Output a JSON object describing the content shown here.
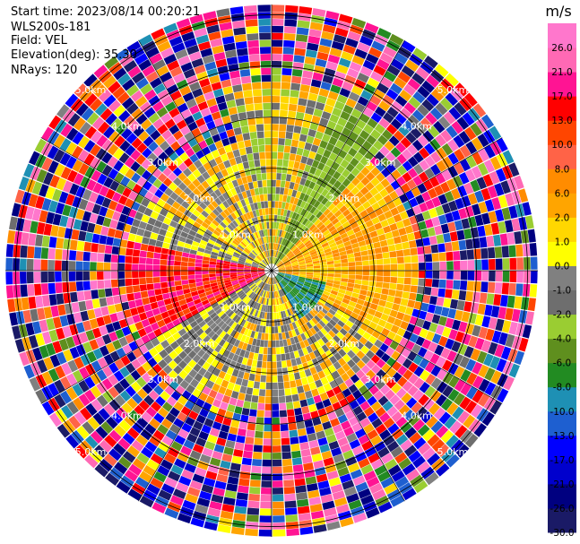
{
  "header": {
    "start_time": "Start time: 2023/08/14 00:20:21",
    "instrument": "WLS200s-181",
    "field": "Field: VEL",
    "elevation": "Elevation(deg): 35.30",
    "nrays": "NRays: 120"
  },
  "chart_data": {
    "type": "heatmap",
    "projection": "polar-ppi",
    "field": "VEL",
    "unit": "m/s",
    "nrays": 120,
    "max_range_km": 5.2,
    "range_rings_km": [
      1.0,
      2.0,
      3.0,
      4.0,
      5.0
    ],
    "ring_labels": [
      "1.0km",
      "2.0km",
      "3.0km",
      "4.0km",
      "5.0km"
    ],
    "colorbar": {
      "boundaries": [
        -30.0,
        -26.0,
        -21.0,
        -17.0,
        -13.0,
        -10.0,
        -8.0,
        -6.0,
        -4.0,
        -2.0,
        -1.0,
        0.0,
        1.0,
        2.0,
        6.0,
        8.0,
        10.0,
        13.0,
        17.0,
        21.0,
        26.0,
        30.0
      ],
      "tick_labels": [
        "-30.0",
        "-26.0",
        "-21.0",
        "-17.0",
        "-13.0",
        "-10.0",
        "-8.0",
        "-6.0",
        "-4.0",
        "-2.0",
        "-1.0",
        "0.0",
        "1.0",
        "2.0",
        "6.0",
        "8.0",
        "10.0",
        "13.0",
        "17.0",
        "21.0",
        "26.0"
      ],
      "colors": [
        "#1a1a66",
        "#000080",
        "#0000cd",
        "#0000ff",
        "#1e5fd0",
        "#1e90b4",
        "#228b22",
        "#5f8f1e",
        "#9acd32",
        "#6e6e6e",
        "#808080",
        "#ffff00",
        "#ffd700",
        "#ffa500",
        "#ff8c00",
        "#ff6347",
        "#ff4500",
        "#ff0000",
        "#ff1493",
        "#ff69b4",
        "#ff77cc"
      ]
    },
    "near_field_pattern": [
      {
        "az_from": 210,
        "az_to": 300,
        "max_km": 3.0,
        "values": [
          -1.0,
          0.0,
          -2.0
        ]
      },
      {
        "az_from": 240,
        "az_to": 280,
        "max_km": 3.0,
        "values": [
          17.0,
          13.0,
          10.0
        ]
      },
      {
        "az_from": 300,
        "az_to": 345,
        "max_km": 2.6,
        "values": [
          0.0,
          -1.0,
          2.0
        ]
      },
      {
        "az_from": 345,
        "az_to": 30,
        "max_km": 3.8,
        "values": [
          2.0,
          1.0,
          -2.0,
          -4.0
        ]
      },
      {
        "az_from": 20,
        "az_to": 40,
        "max_km": 3.6,
        "values": [
          -6.0,
          -4.0
        ]
      },
      {
        "az_from": 40,
        "az_to": 120,
        "max_km": 3.0,
        "values": [
          2.0,
          1.0,
          6.0
        ]
      },
      {
        "az_from": 120,
        "az_to": 210,
        "max_km": 2.6,
        "values": [
          -2.0,
          -1.0,
          0.0,
          2.0
        ]
      },
      {
        "az_from": 100,
        "az_to": 150,
        "max_km": 1.2,
        "values": [
          -8.0,
          -10.0
        ]
      }
    ]
  }
}
